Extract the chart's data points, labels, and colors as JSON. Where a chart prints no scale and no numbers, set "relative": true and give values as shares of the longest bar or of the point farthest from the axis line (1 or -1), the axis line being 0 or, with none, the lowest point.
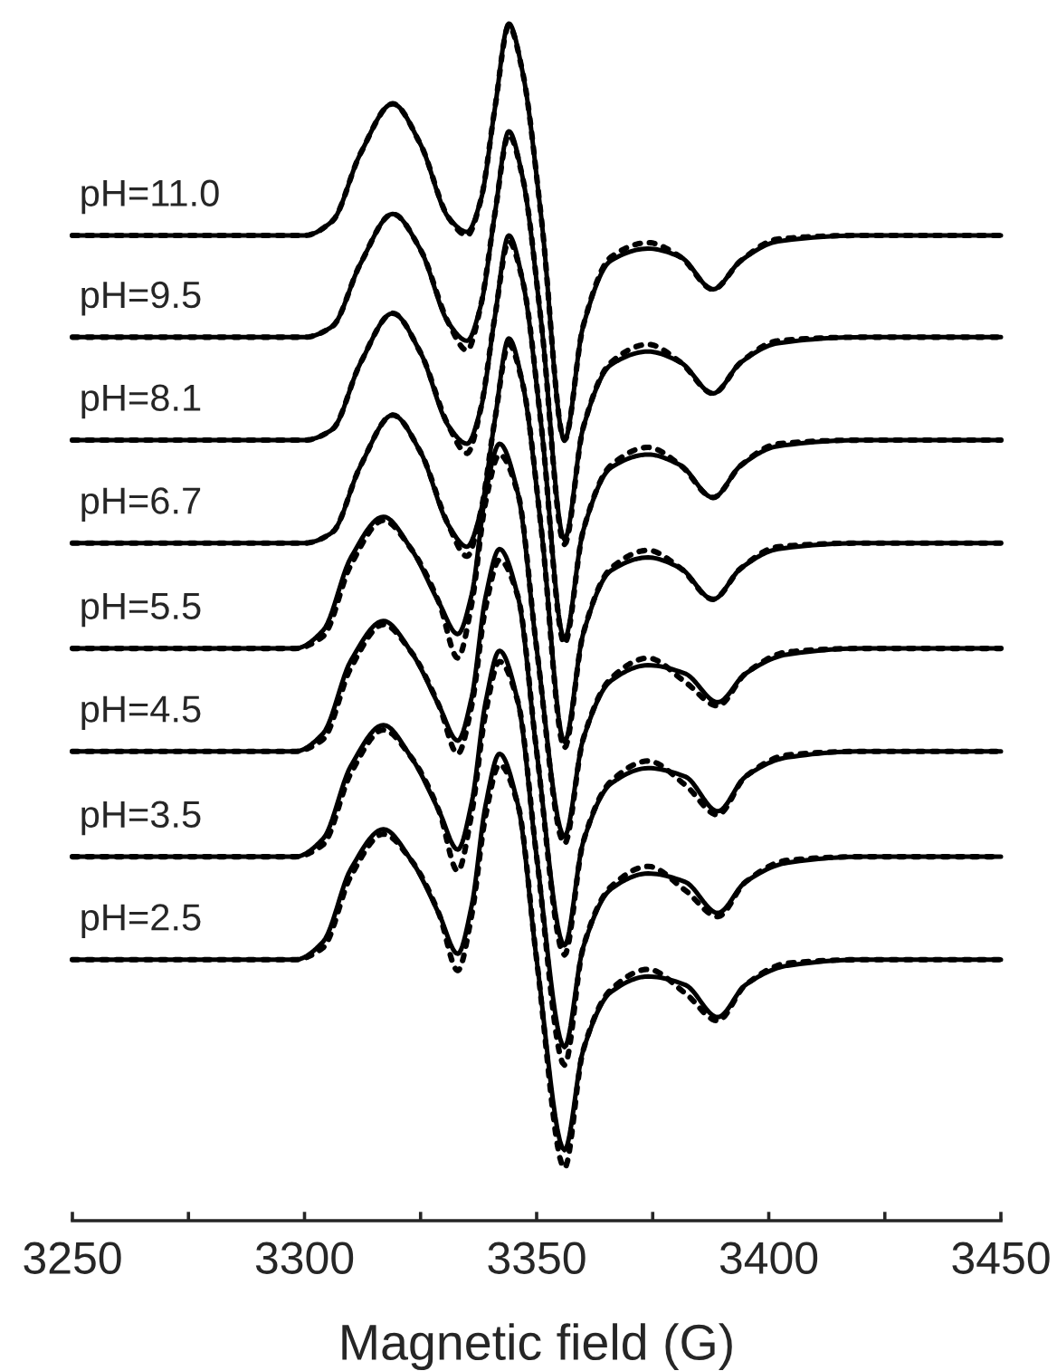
{
  "chart_data": {
    "type": "line",
    "relative": true,
    "xlabel": "Magnetic field (G)",
    "xlim": [
      3250,
      3450
    ],
    "xticks": [
      3250,
      {
        "value": 3275,
        "label": null
      },
      3300,
      {
        "value": 3325,
        "label": null
      },
      3350,
      {
        "value": 3375,
        "label": null
      },
      3400,
      {
        "value": 3425,
        "label": null
      },
      3450
    ],
    "tick_labels": "x",
    "grid": false,
    "legend": false,
    "marker": "none",
    "series": [
      {
        "name": "pH=11.0",
        "color": "#000000",
        "line_style": "solid",
        "x": [
          3250,
          3300,
          3306,
          3312,
          3319,
          3325,
          3331,
          3335,
          3338,
          3341,
          3344,
          3347,
          3351,
          3356,
          3360,
          3366,
          3374,
          3381,
          3388,
          3394,
          3402,
          3420,
          3450
        ],
        "values": [
          0.823,
          0.823,
          0.835,
          0.891,
          0.933,
          0.899,
          0.838,
          0.826,
          0.853,
          0.929,
          1.0,
          0.959,
          0.838,
          0.652,
          0.747,
          0.802,
          0.812,
          0.805,
          0.778,
          0.802,
          0.818,
          0.823,
          0.823
        ]
      },
      {
        "color": "#000000",
        "line_style": "dotted",
        "x": [
          3250,
          3300,
          3306,
          3312,
          3319,
          3325,
          3331,
          3335,
          3338,
          3341,
          3344,
          3347,
          3351,
          3356,
          3360,
          3366,
          3374,
          3381,
          3388,
          3394,
          3402,
          3420,
          3450
        ],
        "values": [
          0.823,
          0.823,
          0.835,
          0.891,
          0.933,
          0.899,
          0.838,
          0.823,
          0.853,
          0.929,
          0.998,
          0.959,
          0.838,
          0.652,
          0.747,
          0.805,
          0.817,
          0.805,
          0.778,
          0.802,
          0.82,
          0.823,
          0.823
        ]
      },
      {
        "name": "pH=9.5",
        "color": "#000000",
        "line_style": "solid",
        "x": [
          3250,
          3300,
          3306,
          3312,
          3319,
          3325,
          3331,
          3335,
          3338,
          3341,
          3344,
          3347,
          3351,
          3356,
          3360,
          3366,
          3374,
          3381,
          3388,
          3394,
          3402,
          3420,
          3450
        ],
        "values": [
          0.738,
          0.738,
          0.747,
          0.799,
          0.841,
          0.811,
          0.75,
          0.735,
          0.765,
          0.841,
          0.91,
          0.871,
          0.75,
          0.569,
          0.662,
          0.715,
          0.726,
          0.717,
          0.691,
          0.717,
          0.733,
          0.738,
          0.738
        ]
      },
      {
        "color": "#000000",
        "line_style": "dotted",
        "x": [
          3250,
          3300,
          3306,
          3312,
          3319,
          3325,
          3331,
          3335,
          3338,
          3341,
          3344,
          3347,
          3351,
          3356,
          3360,
          3366,
          3374,
          3381,
          3388,
          3394,
          3402,
          3420,
          3450
        ],
        "values": [
          0.738,
          0.738,
          0.747,
          0.799,
          0.841,
          0.811,
          0.75,
          0.727,
          0.765,
          0.841,
          0.907,
          0.871,
          0.75,
          0.565,
          0.662,
          0.717,
          0.732,
          0.717,
          0.691,
          0.717,
          0.735,
          0.738,
          0.738
        ]
      },
      {
        "name": "pH=8.1",
        "color": "#000000",
        "line_style": "solid",
        "x": [
          3250,
          3300,
          3306,
          3312,
          3319,
          3325,
          3331,
          3335,
          3338,
          3341,
          3344,
          3347,
          3351,
          3356,
          3360,
          3366,
          3374,
          3381,
          3388,
          3394,
          3402,
          3420,
          3450
        ],
        "values": [
          0.652,
          0.652,
          0.661,
          0.716,
          0.758,
          0.725,
          0.664,
          0.649,
          0.679,
          0.755,
          0.823,
          0.785,
          0.664,
          0.486,
          0.576,
          0.629,
          0.64,
          0.631,
          0.604,
          0.631,
          0.647,
          0.652,
          0.652
        ]
      },
      {
        "color": "#000000",
        "line_style": "dotted",
        "x": [
          3250,
          3300,
          3306,
          3312,
          3319,
          3325,
          3331,
          3335,
          3338,
          3341,
          3344,
          3347,
          3351,
          3356,
          3360,
          3366,
          3374,
          3381,
          3388,
          3394,
          3402,
          3420,
          3450
        ],
        "values": [
          0.652,
          0.652,
          0.661,
          0.716,
          0.758,
          0.725,
          0.664,
          0.641,
          0.679,
          0.755,
          0.818,
          0.785,
          0.664,
          0.482,
          0.576,
          0.631,
          0.646,
          0.631,
          0.604,
          0.631,
          0.649,
          0.652,
          0.652
        ]
      },
      {
        "name": "pH=6.7",
        "color": "#000000",
        "line_style": "solid",
        "x": [
          3250,
          3300,
          3306,
          3312,
          3319,
          3325,
          3331,
          3335,
          3338,
          3341,
          3344,
          3347,
          3351,
          3356,
          3360,
          3366,
          3374,
          3381,
          3388,
          3394,
          3402,
          3420,
          3450
        ],
        "values": [
          0.566,
          0.566,
          0.575,
          0.63,
          0.673,
          0.642,
          0.581,
          0.563,
          0.593,
          0.669,
          0.737,
          0.699,
          0.578,
          0.4,
          0.49,
          0.543,
          0.554,
          0.545,
          0.519,
          0.545,
          0.561,
          0.566,
          0.566
        ]
      },
      {
        "color": "#000000",
        "line_style": "dotted",
        "x": [
          3250,
          3300,
          3306,
          3312,
          3319,
          3325,
          3331,
          3335,
          3338,
          3341,
          3344,
          3347,
          3351,
          3356,
          3360,
          3366,
          3374,
          3381,
          3388,
          3394,
          3402,
          3420,
          3450
        ],
        "values": [
          0.566,
          0.566,
          0.575,
          0.63,
          0.673,
          0.642,
          0.581,
          0.555,
          0.593,
          0.669,
          0.732,
          0.699,
          0.578,
          0.395,
          0.49,
          0.545,
          0.56,
          0.545,
          0.519,
          0.545,
          0.563,
          0.566,
          0.566
        ]
      },
      {
        "name": "pH=5.5",
        "color": "#000000",
        "line_style": "solid",
        "x": [
          3250,
          3298,
          3304,
          3310,
          3317,
          3323,
          3329,
          3333,
          3336,
          3339,
          3342,
          3346,
          3350,
          3356,
          3360,
          3366,
          3374,
          3382,
          3389,
          3395,
          3404,
          3420,
          3450
        ],
        "values": [
          0.478,
          0.478,
          0.493,
          0.554,
          0.588,
          0.561,
          0.516,
          0.49,
          0.523,
          0.607,
          0.649,
          0.607,
          0.478,
          0.321,
          0.402,
          0.451,
          0.464,
          0.457,
          0.433,
          0.457,
          0.473,
          0.478,
          0.478
        ]
      },
      {
        "color": "#000000",
        "line_style": "dotted",
        "x": [
          3250,
          3298,
          3304,
          3310,
          3317,
          3323,
          3329,
          3333,
          3336,
          3339,
          3342,
          3346,
          3350,
          3356,
          3360,
          3366,
          3374,
          3382,
          3389,
          3395,
          3404,
          3420,
          3450
        ],
        "values": [
          0.478,
          0.478,
          0.488,
          0.548,
          0.585,
          0.561,
          0.516,
          0.47,
          0.515,
          0.6,
          0.64,
          0.607,
          0.478,
          0.315,
          0.402,
          0.453,
          0.47,
          0.45,
          0.43,
          0.457,
          0.475,
          0.478,
          0.478
        ]
      },
      {
        "name": "pH=4.5",
        "color": "#000000",
        "line_style": "solid",
        "x": [
          3250,
          3298,
          3304,
          3310,
          3317,
          3323,
          3329,
          3333,
          3336,
          3339,
          3342,
          3346,
          3350,
          3356,
          3360,
          3366,
          3374,
          3382,
          3389,
          3395,
          3404,
          3420,
          3450
        ],
        "values": [
          0.392,
          0.392,
          0.407,
          0.468,
          0.501,
          0.475,
          0.43,
          0.401,
          0.437,
          0.521,
          0.561,
          0.521,
          0.392,
          0.23,
          0.316,
          0.365,
          0.378,
          0.371,
          0.342,
          0.371,
          0.387,
          0.392,
          0.392
        ]
      },
      {
        "color": "#000000",
        "line_style": "dotted",
        "x": [
          3250,
          3298,
          3304,
          3310,
          3317,
          3323,
          3329,
          3333,
          3336,
          3339,
          3342,
          3346,
          3350,
          3356,
          3360,
          3366,
          3374,
          3382,
          3389,
          3395,
          3404,
          3420,
          3450
        ],
        "values": [
          0.392,
          0.392,
          0.402,
          0.462,
          0.498,
          0.475,
          0.43,
          0.39,
          0.43,
          0.512,
          0.552,
          0.521,
          0.392,
          0.222,
          0.316,
          0.367,
          0.384,
          0.364,
          0.339,
          0.371,
          0.389,
          0.392,
          0.392
        ]
      },
      {
        "name": "pH=3.5",
        "color": "#000000",
        "line_style": "solid",
        "x": [
          3250,
          3298,
          3304,
          3310,
          3317,
          3323,
          3329,
          3333,
          3336,
          3339,
          3342,
          3346,
          3350,
          3356,
          3360,
          3366,
          3374,
          3382,
          3389,
          3395,
          3404,
          3420,
          3450
        ],
        "values": [
          0.304,
          0.304,
          0.319,
          0.38,
          0.414,
          0.387,
          0.342,
          0.31,
          0.349,
          0.433,
          0.476,
          0.433,
          0.304,
          0.145,
          0.228,
          0.277,
          0.29,
          0.283,
          0.257,
          0.283,
          0.299,
          0.304,
          0.304
        ]
      },
      {
        "color": "#000000",
        "line_style": "dotted",
        "x": [
          3250,
          3298,
          3304,
          3310,
          3317,
          3323,
          3329,
          3333,
          3336,
          3339,
          3342,
          3346,
          3350,
          3356,
          3360,
          3366,
          3374,
          3382,
          3389,
          3395,
          3404,
          3420,
          3450
        ],
        "values": [
          0.304,
          0.304,
          0.314,
          0.374,
          0.41,
          0.387,
          0.342,
          0.292,
          0.34,
          0.424,
          0.467,
          0.433,
          0.304,
          0.13,
          0.228,
          0.279,
          0.296,
          0.276,
          0.254,
          0.283,
          0.301,
          0.304,
          0.304
        ]
      },
      {
        "name": "pH=2.5",
        "color": "#000000",
        "line_style": "solid",
        "x": [
          3250,
          3298,
          3304,
          3310,
          3317,
          3323,
          3329,
          3333,
          3336,
          3339,
          3342,
          3346,
          3350,
          3356,
          3360,
          3366,
          3374,
          3382,
          3389,
          3395,
          3404,
          3420,
          3450
        ],
        "values": [
          0.218,
          0.218,
          0.233,
          0.294,
          0.327,
          0.301,
          0.256,
          0.223,
          0.263,
          0.347,
          0.39,
          0.347,
          0.218,
          0.059,
          0.142,
          0.191,
          0.204,
          0.197,
          0.17,
          0.197,
          0.213,
          0.218,
          0.218
        ]
      },
      {
        "color": "#000000",
        "line_style": "dotted",
        "x": [
          3250,
          3298,
          3304,
          3310,
          3317,
          3323,
          3329,
          3333,
          3336,
          3339,
          3342,
          3346,
          3350,
          3356,
          3360,
          3366,
          3374,
          3382,
          3389,
          3395,
          3404,
          3420,
          3450
        ],
        "values": [
          0.218,
          0.218,
          0.228,
          0.288,
          0.323,
          0.301,
          0.256,
          0.209,
          0.255,
          0.338,
          0.381,
          0.347,
          0.218,
          0.044,
          0.142,
          0.193,
          0.21,
          0.19,
          0.167,
          0.197,
          0.215,
          0.218,
          0.218
        ]
      }
    ]
  }
}
